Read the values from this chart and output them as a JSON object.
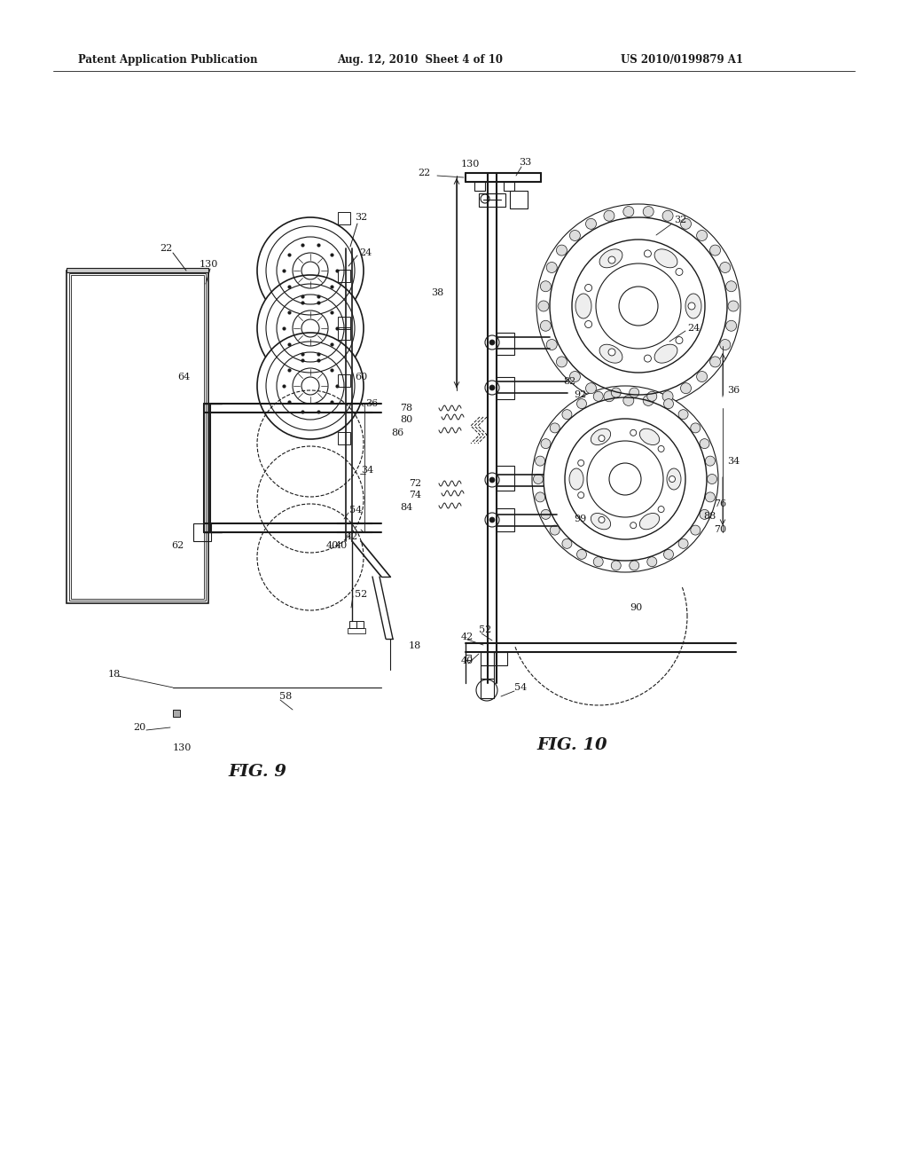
{
  "background_color": "#ffffff",
  "header_left": "Patent Application Publication",
  "header_center": "Aug. 12, 2010  Sheet 4 of 10",
  "header_right": "US 2010/0199879 A1",
  "fig9_label": "FIG. 9",
  "fig10_label": "FIG. 10",
  "line_color": "#1a1a1a",
  "text_color": "#1a1a1a"
}
